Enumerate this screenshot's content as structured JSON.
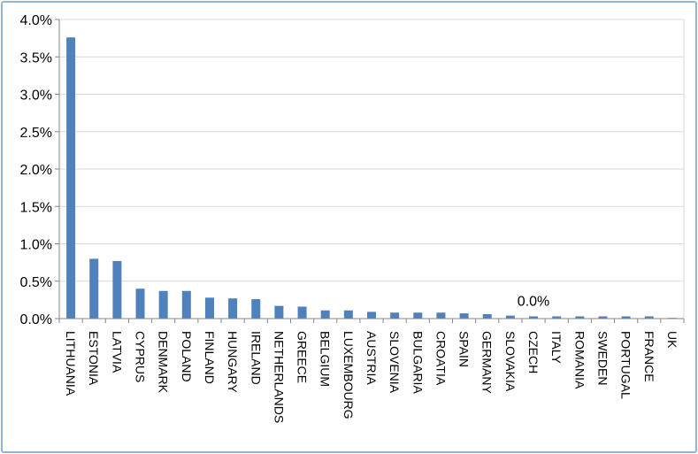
{
  "chart_data": {
    "type": "bar",
    "title": "",
    "xlabel": "",
    "ylabel": "",
    "ylim": [
      0,
      0.04
    ],
    "y_tick_labels": [
      "0.0%",
      "0.5%",
      "1.0%",
      "1.5%",
      "2.0%",
      "2.5%",
      "3.0%",
      "3.5%",
      "4.0%"
    ],
    "y_tick_values": [
      0,
      0.005,
      0.01,
      0.015,
      0.02,
      0.025,
      0.03,
      0.035,
      0.04
    ],
    "grid": true,
    "legend": "none",
    "bar_color": "#4f81bd",
    "categories": [
      "LITHUANIA",
      "ESTONIA",
      "LATVIA",
      "CYPRUS",
      "DENMARK",
      "POLAND",
      "FINLAND",
      "HUNGARY",
      "IRELAND",
      "NETHERLANDS",
      "GREECE",
      "BELGIUM",
      "LUXEMBOURG",
      "AUSTRIA",
      "SLOVENIA",
      "BULGARIA",
      "CROATIA",
      "SPAIN",
      "GERMANY",
      "SLOVAKIA",
      "CZECH",
      "ITALY",
      "ROMANIA",
      "SWEDEN",
      "PORTUGAL",
      "FRANCE",
      "UK"
    ],
    "values": [
      0.0376,
      0.008,
      0.0077,
      0.004,
      0.0037,
      0.0037,
      0.0028,
      0.0027,
      0.0026,
      0.0017,
      0.0016,
      0.0011,
      0.0011,
      0.0009,
      0.0008,
      0.0008,
      0.0008,
      0.0007,
      0.0006,
      0.0004,
      0.0003,
      0.0003,
      0.0003,
      0.0003,
      0.0003,
      0.0003,
      0.0001
    ],
    "annotation": {
      "category": "CZECH",
      "text": "0.0%"
    }
  }
}
